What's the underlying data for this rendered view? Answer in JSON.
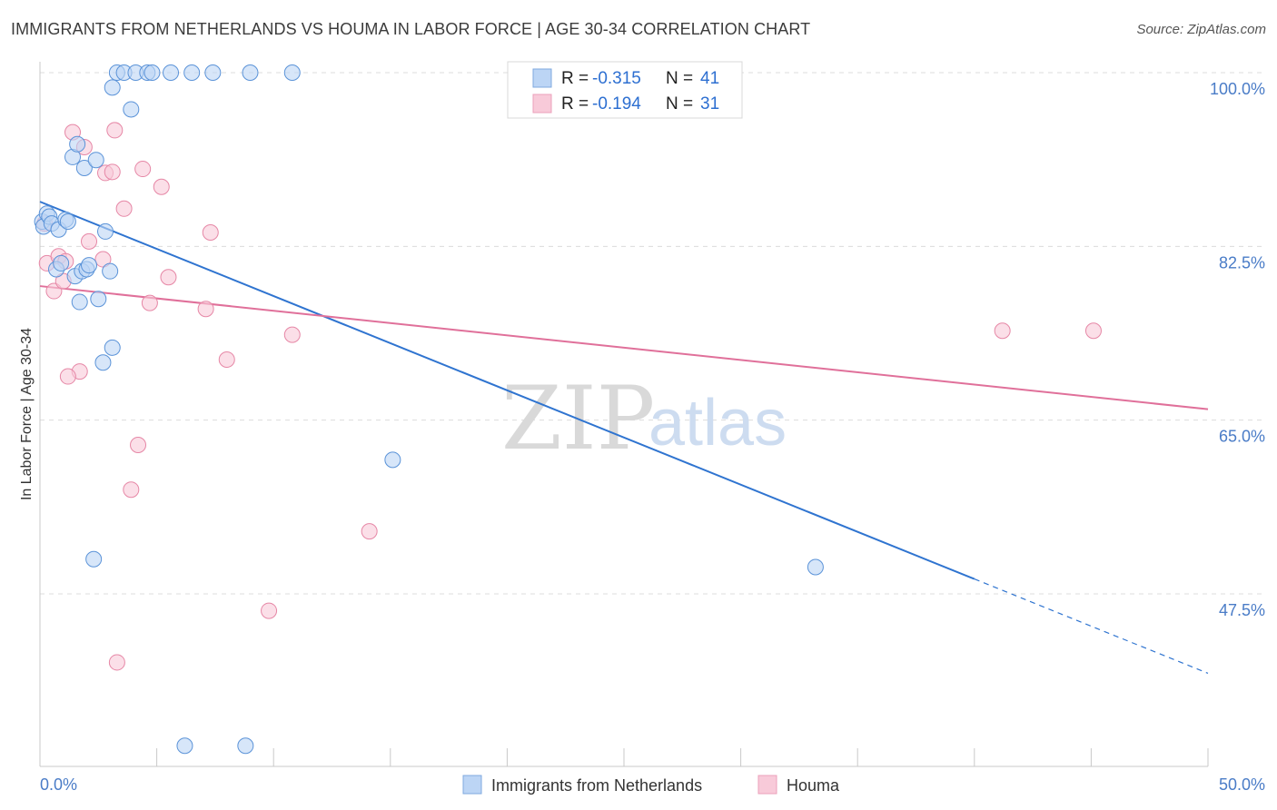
{
  "title": "IMMIGRANTS FROM NETHERLANDS VS HOUMA IN LABOR FORCE | AGE 30-34 CORRELATION CHART",
  "source": "Source: ZipAtlas.com",
  "watermark": {
    "zip": "ZIP",
    "atlas": "atlas"
  },
  "colors": {
    "blue": "#5b93d8",
    "blue_fill": "#bcd5f5",
    "blue_line": "#2f74d0",
    "pink": "#e687a6",
    "pink_fill": "#f8cad9",
    "pink_line": "#e0709a",
    "grid": "#dcdcdc",
    "axis_text": "#4a7cc7"
  },
  "legend_top": [
    {
      "r_label": "R = ",
      "r_value": "-0.315",
      "n_label": "N = ",
      "n_value": "41"
    },
    {
      "r_label": "R = ",
      "r_value": "-0.194",
      "n_label": "N = ",
      "n_value": "31"
    }
  ],
  "chart_data": {
    "type": "scatter",
    "title": "IMMIGRANTS FROM NETHERLANDS VS HOUMA IN LABOR FORCE | AGE 30-34 CORRELATION CHART",
    "xlabel": "",
    "ylabel": "In Labor Force | Age 30-34",
    "xlim": [
      0,
      50
    ],
    "ylim": [
      31,
      102
    ],
    "x_tick_labels": [
      "0.0%",
      "50.0%"
    ],
    "y_ticks": [
      47.5,
      65.0,
      82.5,
      100.0
    ],
    "y_tick_labels": [
      "47.5%",
      "65.0%",
      "82.5%",
      "100.0%"
    ],
    "grid": true,
    "legend_position": "top-center",
    "series": [
      {
        "name": "Immigrants from Netherlands",
        "color": "#5b93d8",
        "points": [
          [
            0.1,
            85.0
          ],
          [
            0.15,
            84.5
          ],
          [
            0.3,
            85.8
          ],
          [
            0.4,
            85.5
          ],
          [
            0.5,
            84.8
          ],
          [
            0.8,
            84.2
          ],
          [
            1.1,
            85.2
          ],
          [
            1.2,
            85.0
          ],
          [
            0.7,
            80.2
          ],
          [
            0.9,
            80.8
          ],
          [
            1.5,
            79.5
          ],
          [
            1.8,
            80.0
          ],
          [
            2.0,
            80.2
          ],
          [
            2.1,
            80.6
          ],
          [
            3.0,
            80.0
          ],
          [
            1.7,
            76.9
          ],
          [
            2.5,
            77.2
          ],
          [
            1.4,
            91.5
          ],
          [
            1.9,
            90.4
          ],
          [
            2.4,
            91.2
          ],
          [
            1.6,
            92.8
          ],
          [
            2.8,
            84.0
          ],
          [
            3.1,
            72.3
          ],
          [
            2.7,
            70.8
          ],
          [
            3.1,
            98.5
          ],
          [
            3.9,
            96.3
          ],
          [
            3.3,
            100.0
          ],
          [
            3.6,
            100.0
          ],
          [
            4.1,
            100.0
          ],
          [
            4.6,
            100.0
          ],
          [
            4.8,
            100.0
          ],
          [
            5.6,
            100.0
          ],
          [
            6.5,
            100.0
          ],
          [
            7.4,
            100.0
          ],
          [
            9.0,
            100.0
          ],
          [
            10.8,
            100.0
          ],
          [
            15.1,
            61.0
          ],
          [
            2.3,
            51.0
          ],
          [
            33.2,
            50.2
          ],
          [
            6.2,
            32.2
          ],
          [
            8.8,
            32.2
          ]
        ]
      },
      {
        "name": "Houma",
        "color": "#e687a6",
        "points": [
          [
            0.2,
            84.8
          ],
          [
            0.3,
            80.8
          ],
          [
            0.6,
            78.0
          ],
          [
            0.8,
            81.5
          ],
          [
            1.0,
            79.0
          ],
          [
            1.1,
            81.0
          ],
          [
            1.4,
            94.0
          ],
          [
            1.9,
            92.5
          ],
          [
            2.1,
            83.0
          ],
          [
            2.7,
            81.2
          ],
          [
            2.8,
            89.9
          ],
          [
            3.1,
            90.0
          ],
          [
            3.2,
            94.2
          ],
          [
            3.6,
            86.3
          ],
          [
            4.4,
            90.3
          ],
          [
            5.2,
            88.5
          ],
          [
            4.7,
            76.8
          ],
          [
            5.5,
            79.4
          ],
          [
            7.1,
            76.2
          ],
          [
            7.3,
            83.9
          ],
          [
            8.0,
            71.1
          ],
          [
            10.8,
            73.6
          ],
          [
            1.7,
            69.9
          ],
          [
            1.2,
            69.4
          ],
          [
            4.2,
            62.5
          ],
          [
            3.9,
            58.0
          ],
          [
            14.1,
            53.8
          ],
          [
            9.8,
            45.8
          ],
          [
            3.3,
            40.6
          ],
          [
            41.2,
            74.0
          ],
          [
            45.1,
            74.0
          ]
        ]
      }
    ],
    "trend_lines": [
      {
        "series": "Immigrants from Netherlands",
        "x_start": 0,
        "y_start": 87.0,
        "x_end": 40,
        "y_end": 49.0,
        "dashed_to_x": 50,
        "dashed_to_y": 39.5
      },
      {
        "series": "Houma",
        "x_start": 0,
        "y_start": 78.5,
        "x_end": 50,
        "y_end": 66.1
      }
    ]
  }
}
